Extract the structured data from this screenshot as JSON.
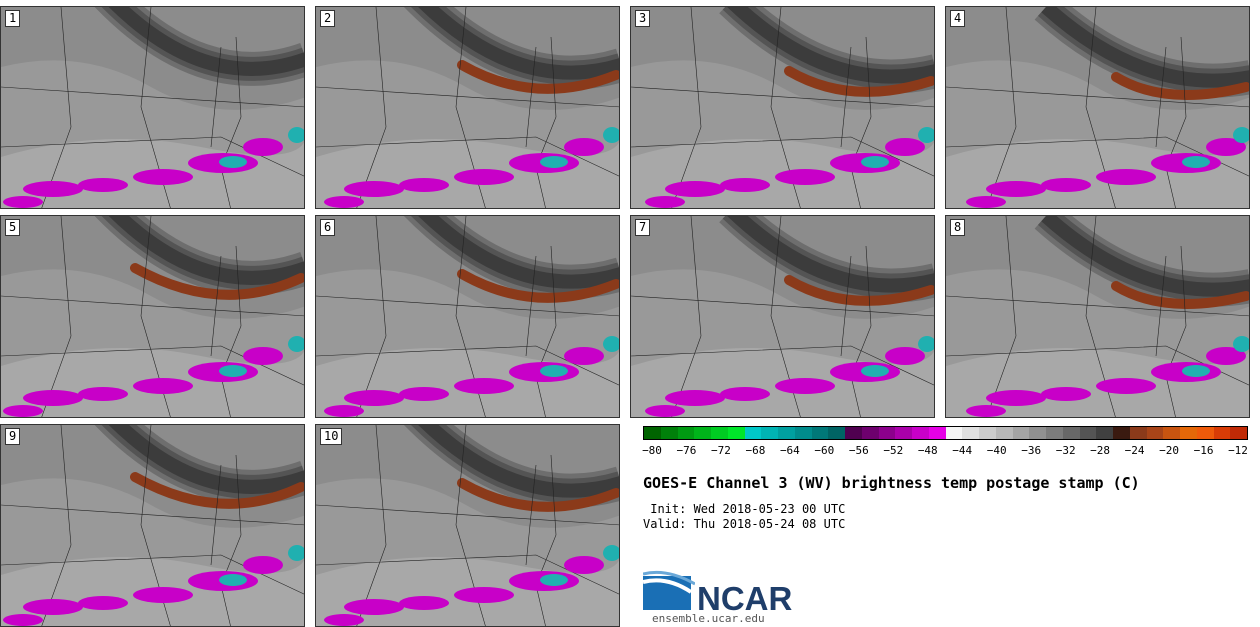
{
  "panels": [
    {
      "label": "1"
    },
    {
      "label": "2"
    },
    {
      "label": "3"
    },
    {
      "label": "4"
    },
    {
      "label": "5"
    },
    {
      "label": "6"
    },
    {
      "label": "7"
    },
    {
      "label": "8"
    },
    {
      "label": "9"
    },
    {
      "label": "10"
    }
  ],
  "colorbar": {
    "colors": [
      "#006400",
      "#00800a",
      "#009a12",
      "#00b41a",
      "#00cc22",
      "#00e62a",
      "#00c8c8",
      "#00b4b4",
      "#00a0a0",
      "#008c8c",
      "#007878",
      "#006464",
      "#500050",
      "#6e006e",
      "#8c008c",
      "#aa00aa",
      "#c800c8",
      "#e600e6",
      "#f5f5f5",
      "#e0e0e0",
      "#cccccc",
      "#b8b8b8",
      "#a4a4a4",
      "#909090",
      "#7c7c7c",
      "#686868",
      "#545454",
      "#404040",
      "#3a1a10",
      "#8b3a1a",
      "#a84418",
      "#c85410",
      "#e46808",
      "#ee5a0a",
      "#d83c06",
      "#c02a06"
    ],
    "ticks": [
      "−80",
      "−76",
      "−72",
      "−68",
      "−64",
      "−60",
      "−56",
      "−52",
      "−48",
      "−44",
      "−40",
      "−36",
      "−32",
      "−28",
      "−24",
      "−20",
      "−16",
      "−12"
    ]
  },
  "title": "GOES-E Channel 3 (WV) brightness temp postage stamp (C)",
  "init": " Init: Wed 2018-05-23 00 UTC",
  "valid": "Valid: Thu 2018-05-24 08 UTC",
  "logo_text": "NCAR",
  "logo_url": "ensemble.ucar.edu",
  "colors": {
    "band_dark": "#3c3c3c",
    "jet": "#8b3a1a",
    "convection": "#c800c8",
    "cold_core": "#20b0b0"
  }
}
